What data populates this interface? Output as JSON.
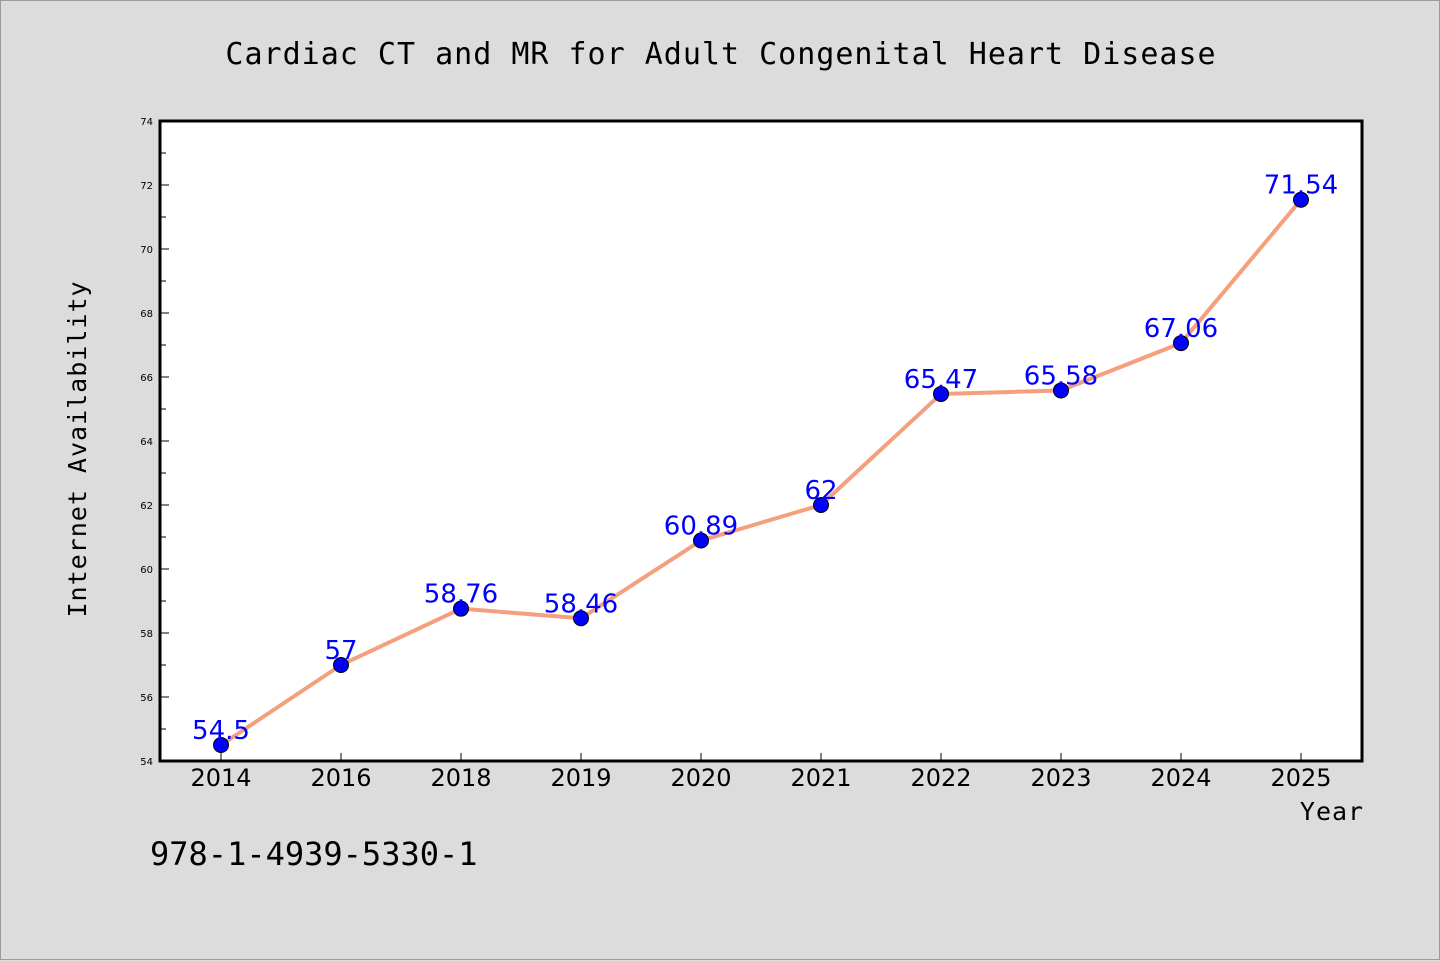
{
  "chart_data": {
    "type": "line",
    "title": "Cardiac CT and MR for Adult Congenital Heart Disease",
    "xlabel": "Year",
    "ylabel": "Internet Availability",
    "categories": [
      "2014",
      "2016",
      "2018",
      "2019",
      "2020",
      "2021",
      "2022",
      "2023",
      "2024",
      "2025"
    ],
    "series": [
      {
        "values": [
          54.5,
          57,
          58.76,
          58.46,
          60.89,
          62,
          65.47,
          65.58,
          67.06,
          71.54
        ],
        "labels": [
          "54.5",
          "57",
          "58.76",
          "58.46",
          "60.89",
          "62",
          "65.47",
          "65.58",
          "67.06",
          "71.54"
        ],
        "line_color": "#f4a07f",
        "marker_color": "#0000ff"
      }
    ],
    "ylim": [
      54,
      74
    ],
    "yticks": [
      "54",
      "56",
      "58",
      "60",
      "62",
      "64",
      "66",
      "68",
      "70",
      "72",
      "74"
    ],
    "grid": false,
    "legend": false
  },
  "footnote": "978-1-4939-5330-1",
  "colors": {
    "background": "#dcdcdc",
    "plot_background": "#ffffff",
    "line": "#f4a07f",
    "marker": "#0000ff",
    "data_label": "#0000ff"
  }
}
